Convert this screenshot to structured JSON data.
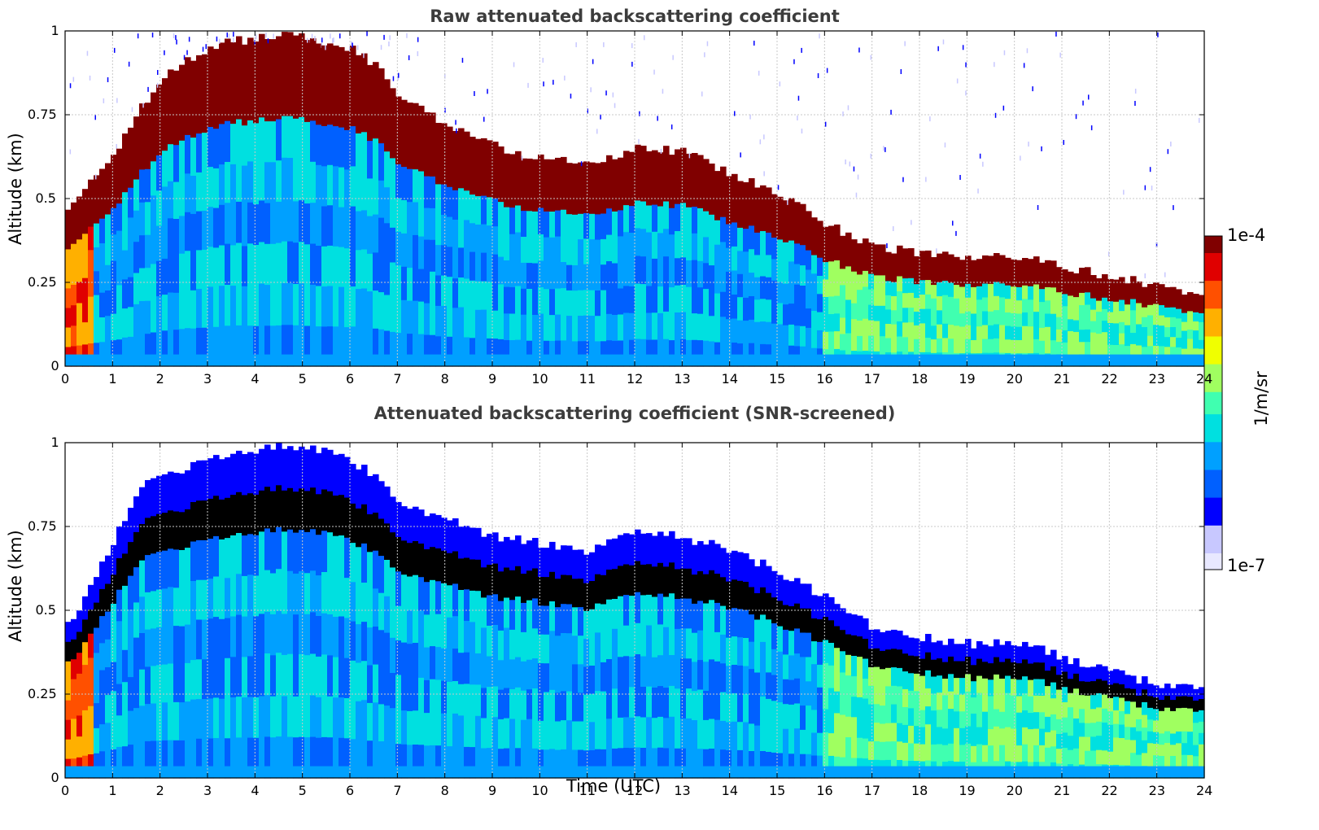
{
  "chart_data": [
    {
      "type": "heatmap",
      "title": "Raw attenuated backscattering coefficient",
      "xlabel": "",
      "ylabel": "Altitude (km)",
      "xlim": [
        0,
        24
      ],
      "ylim": [
        0,
        1
      ],
      "x_ticks": [
        "0",
        "1",
        "2",
        "3",
        "4",
        "5",
        "6",
        "7",
        "8",
        "9",
        "10",
        "11",
        "12",
        "13",
        "14",
        "15",
        "16",
        "17",
        "18",
        "19",
        "20",
        "21",
        "22",
        "23",
        "24"
      ],
      "y_ticks": [
        "0",
        "0.25",
        "0.5",
        "0.75",
        "1"
      ],
      "grid": true,
      "layer_top_km": {
        "time": [
          0,
          0.5,
          1,
          1.5,
          2,
          3,
          4,
          5,
          6,
          6.5,
          7,
          8,
          9,
          10,
          11,
          12,
          13,
          14,
          15,
          16,
          17,
          18,
          19,
          20,
          21,
          22,
          23,
          24
        ],
        "altitude": [
          0.45,
          0.55,
          0.62,
          0.75,
          0.85,
          0.95,
          0.98,
          0.99,
          0.95,
          0.9,
          0.82,
          0.72,
          0.66,
          0.62,
          0.6,
          0.65,
          0.64,
          0.58,
          0.52,
          0.43,
          0.36,
          0.34,
          0.33,
          0.33,
          0.3,
          0.27,
          0.24,
          0.22
        ]
      },
      "noise_above_layer": true
    },
    {
      "type": "heatmap",
      "title": "Attenuated backscattering coefficient (SNR-screened)",
      "xlabel": "Time (UTC)",
      "ylabel": "Altitude (km)",
      "xlim": [
        0,
        24
      ],
      "ylim": [
        0,
        1
      ],
      "x_ticks": [
        "0",
        "1",
        "2",
        "3",
        "4",
        "5",
        "6",
        "7",
        "8",
        "9",
        "10",
        "11",
        "12",
        "13",
        "14",
        "15",
        "16",
        "17",
        "18",
        "19",
        "20",
        "21",
        "22",
        "23",
        "24"
      ],
      "y_ticks": [
        "0",
        "0.25",
        "0.5",
        "0.75",
        "1"
      ],
      "grid": true,
      "layer_top_km": {
        "time": [
          0,
          0.5,
          1,
          1.5,
          2,
          3,
          4,
          5,
          6,
          6.5,
          7,
          8,
          9,
          10,
          11,
          12,
          13,
          14,
          15,
          16,
          17,
          18,
          19,
          20,
          21,
          22,
          23,
          24
        ],
        "altitude": [
          0.45,
          0.55,
          0.7,
          0.85,
          0.9,
          0.95,
          0.98,
          0.99,
          0.95,
          0.9,
          0.82,
          0.78,
          0.72,
          0.7,
          0.68,
          0.74,
          0.72,
          0.68,
          0.62,
          0.54,
          0.45,
          0.42,
          0.4,
          0.41,
          0.36,
          0.32,
          0.28,
          0.26
        ]
      },
      "noise_above_layer": false
    }
  ],
  "colorbar": {
    "label": "1/m/sr",
    "max_label": "1e-4",
    "min_label": "1e-7",
    "colors": [
      "#e8e8ff",
      "#c8c8ff",
      "#0000ff",
      "#0060ff",
      "#00a0ff",
      "#00e0e0",
      "#40ffb0",
      "#a0ff60",
      "#f0ff00",
      "#ffb000",
      "#ff5000",
      "#e00000",
      "#800000"
    ]
  }
}
